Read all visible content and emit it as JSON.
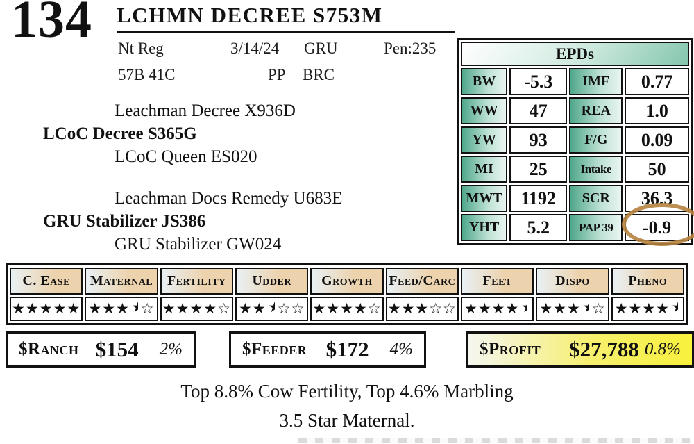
{
  "lot": {
    "number": "134",
    "name": "LCHMN DECREE S753M"
  },
  "info": {
    "registration": "Nt Reg",
    "birth_date": "3/14/24",
    "herd": "GRU",
    "pen": "Pen:235",
    "tattoo": "57B 41C",
    "horn_status": "PP",
    "breed_code": "BRC"
  },
  "pedigree": {
    "sire_sire": "Leachman Decree X936D",
    "sire": "LCoC Decree S365G",
    "sire_dam": "LCoC Queen ES020",
    "dam_sire": "Leachman Docs Remedy U683E",
    "dam": "GRU Stabilizer JS386",
    "dam_dam": "GRU Stabilizer GW024"
  },
  "epds": {
    "title": "EPDs",
    "rows": [
      {
        "label1": "BW",
        "value1": "-5.3",
        "label2": "IMF",
        "value2": "0.77"
      },
      {
        "label1": "WW",
        "value1": "47",
        "label2": "REA",
        "value2": "1.0"
      },
      {
        "label1": "YW",
        "value1": "93",
        "label2": "F/G",
        "value2": "0.09"
      },
      {
        "label1": "MI",
        "value1": "25",
        "label2": "Intake",
        "value2": "50"
      },
      {
        "label1": "MWT",
        "value1": "1192",
        "label2": "SCR",
        "value2": "36.3"
      },
      {
        "label1": "YHT",
        "value1": "5.2",
        "label2": "PAP 39",
        "value2": "-0.9"
      }
    ],
    "highlight": {
      "circled_value": "-0.9",
      "circle_color": "#b5823f"
    }
  },
  "ratings": {
    "max_stars": 5,
    "columns": [
      {
        "label": "C. Ease",
        "stars": 5
      },
      {
        "label": "Maternal",
        "stars": 3.5
      },
      {
        "label": "Fertility",
        "stars": 4
      },
      {
        "label": "Udder",
        "stars": 2.5
      },
      {
        "label": "Growth",
        "stars": 4
      },
      {
        "label": "Feed/Carc",
        "stars": 3
      },
      {
        "label": "Feet",
        "stars": 4.5
      },
      {
        "label": "Dispo",
        "stars": 3.5
      },
      {
        "label": "Pheno",
        "stars": 4.5
      }
    ]
  },
  "dollar_values": [
    {
      "label": "$Ranch",
      "value": "$154",
      "percentile": "2%"
    },
    {
      "label": "$Feeder",
      "value": "$172",
      "percentile": "4%"
    },
    {
      "label": "$Profit",
      "value": "$27,788",
      "percentile": "0.8%",
      "highlight_color": "#f8f13d"
    }
  ],
  "notes": [
    "Top 8.8% Cow Fertility, Top 4.6% Marbling",
    "3.5 Star Maternal."
  ],
  "colors": {
    "epd_label_teal": "#4fa78b",
    "epd_header_teal": "#84c6ae",
    "rating_header_tan": "#ecd3ae",
    "rating_header_blue": "#e9f0f4",
    "profit_yellow": "#f8f13d",
    "circle_brown": "#b5823f"
  }
}
